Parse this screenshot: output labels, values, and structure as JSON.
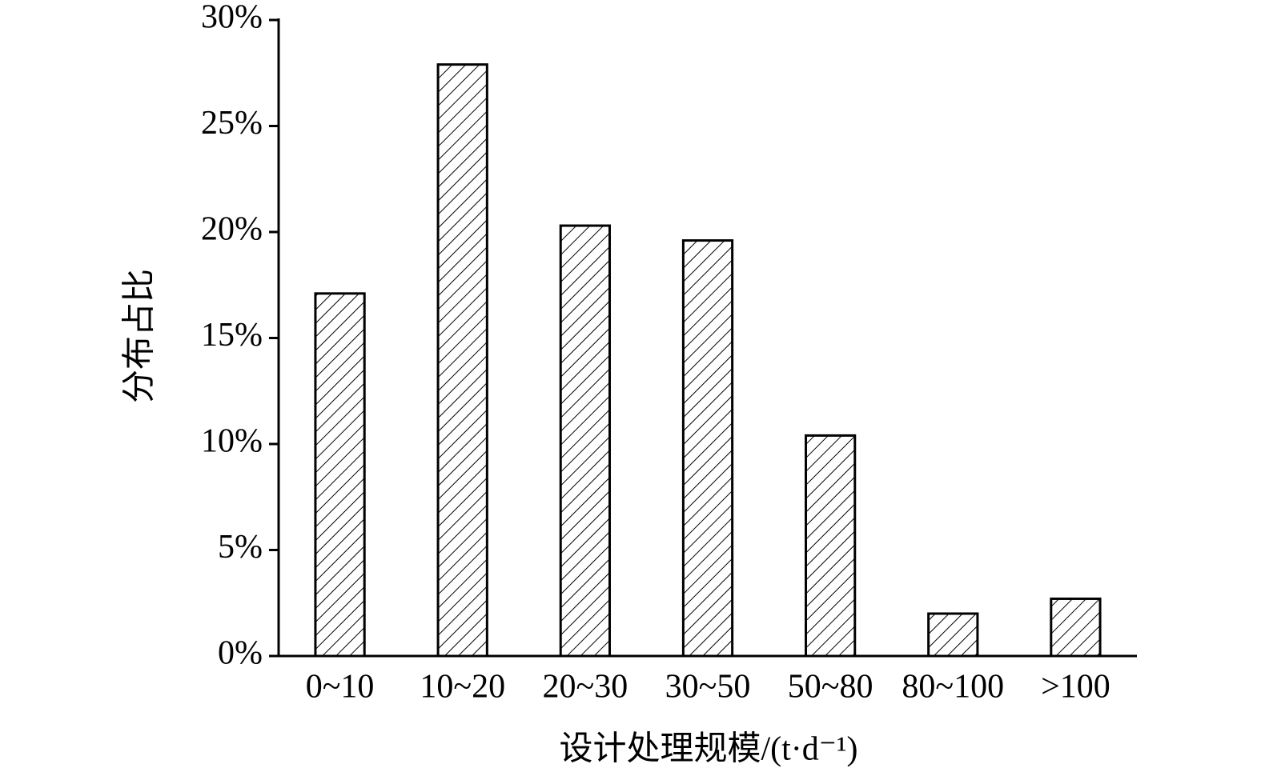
{
  "chart_data": {
    "type": "bar",
    "x_label": "设计处理规模/(t·d⁻¹)",
    "y_label": "分布占比",
    "categories": [
      "0~10",
      "10~20",
      "20~30",
      "30~50",
      "50~80",
      "80~100",
      ">100"
    ],
    "values": [
      17.1,
      27.9,
      20.3,
      19.6,
      10.4,
      2.0,
      2.7
    ],
    "color": "#000000",
    "ylim": [
      0,
      30
    ],
    "yticks": [
      {
        "value": 0,
        "label": "0%"
      },
      {
        "value": 5,
        "label": "5%"
      },
      {
        "value": 10,
        "label": "10%"
      },
      {
        "value": 15,
        "label": "15%"
      },
      {
        "value": 20,
        "label": "20%"
      },
      {
        "value": 25,
        "label": "25%"
      },
      {
        "value": 30,
        "label": "30%"
      }
    ],
    "grid": false
  }
}
